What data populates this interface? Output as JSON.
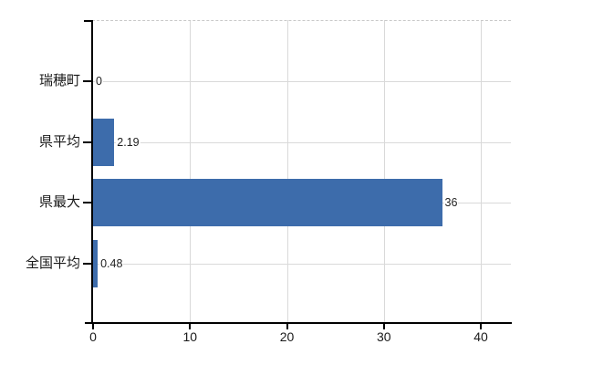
{
  "chart_data": {
    "type": "bar",
    "orientation": "horizontal",
    "title": "",
    "xlabel": "",
    "ylabel": "",
    "categories": [
      "瑞穂町",
      "県平均",
      "県最大",
      "全国平均"
    ],
    "values": [
      0,
      2.19,
      36,
      0.48
    ],
    "value_labels": [
      "0",
      "2.19",
      "36",
      "0.48"
    ],
    "xticks": [
      "0",
      "10",
      "20",
      "30",
      "40"
    ],
    "xtick_values": [
      0,
      10,
      20,
      30,
      40
    ],
    "xlim": [
      0,
      43.2
    ],
    "grid": true,
    "legend": "none",
    "bar_color": "#3d6cab",
    "gridline_color": "#d9d9d9",
    "top_border_color": "#c9c9c9",
    "axis_color": "#000000",
    "label_color": "#1a1a1a"
  }
}
